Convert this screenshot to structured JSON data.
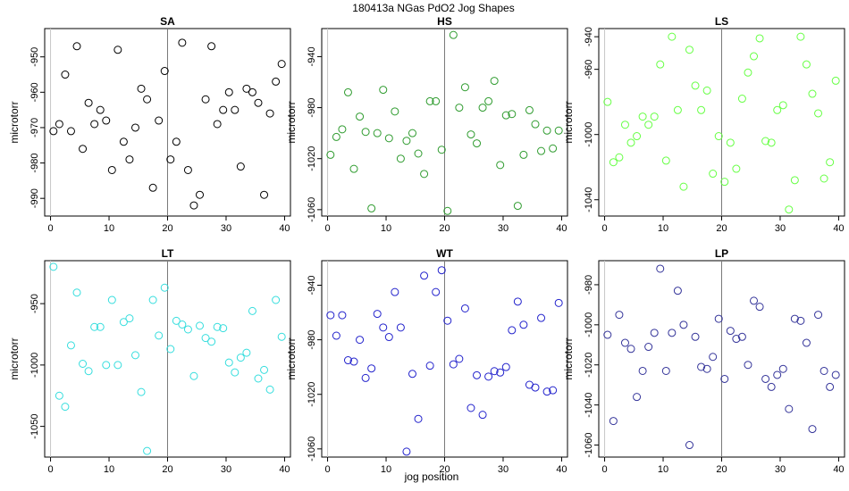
{
  "figure": {
    "title": "180413a   NGas PdO2 Jog Shapes",
    "xlabel": "jog position",
    "ylabel": "microtorr"
  },
  "chart_data": [
    {
      "type": "scatter",
      "title": "SA",
      "color": "#000000",
      "xlim": [
        -1,
        41
      ],
      "ylim": [
        -995,
        -942
      ],
      "xticks": [
        0,
        10,
        20,
        30,
        40
      ],
      "yticks": [
        -990,
        -980,
        -970,
        -960,
        -950
      ],
      "vline": 20,
      "x": [
        0.5,
        1.5,
        2.5,
        3.5,
        4.5,
        5.5,
        6.5,
        7.5,
        8.5,
        9.5,
        10.5,
        11.5,
        12.5,
        13.5,
        14.5,
        15.5,
        16.5,
        17.5,
        18.5,
        19.5,
        20.5,
        21.5,
        22.5,
        23.5,
        24.5,
        25.5,
        26.5,
        27.5,
        28.5,
        29.5,
        30.5,
        31.5,
        32.5,
        33.5,
        34.5,
        35.5,
        36.5,
        37.5,
        38.5,
        39.5
      ],
      "y": [
        -971,
        -969,
        -955,
        -971,
        -947,
        -976,
        -963,
        -969,
        -965,
        -968,
        -982,
        -948,
        -974,
        -979,
        -970,
        -959,
        -962,
        -987,
        -968,
        -954,
        -979,
        -974,
        -946,
        -982,
        -992,
        -989,
        -962,
        -947,
        -969,
        -965,
        -960,
        -965,
        -981,
        -959,
        -960,
        -963,
        -989,
        -966,
        -957,
        -952
      ]
    },
    {
      "type": "scatter",
      "title": "HS",
      "color": "#2e9b2e",
      "xlim": [
        -1,
        41
      ],
      "ylim": [
        -1065,
        -918
      ],
      "xticks": [
        0,
        10,
        20,
        30,
        40
      ],
      "yticks": [
        -1060,
        -1020,
        -980,
        -940
      ],
      "vline": 20,
      "x": [
        0.5,
        1.5,
        2.5,
        3.5,
        4.5,
        5.5,
        6.5,
        7.5,
        8.5,
        9.5,
        10.5,
        11.5,
        12.5,
        13.5,
        14.5,
        15.5,
        16.5,
        17.5,
        18.5,
        19.5,
        20.5,
        21.5,
        22.5,
        23.5,
        24.5,
        25.5,
        26.5,
        27.5,
        28.5,
        29.5,
        30.5,
        31.5,
        32.5,
        33.5,
        34.5,
        35.5,
        36.5,
        37.5,
        38.5,
        39.5
      ],
      "y": [
        -1017,
        -1003,
        -997,
        -968,
        -1028,
        -987,
        -999,
        -1059,
        -1000,
        -966,
        -1004,
        -983,
        -1020,
        -1006,
        -1000,
        -1016,
        -1032,
        -975,
        -975,
        -1013,
        -1061,
        -923,
        -980,
        -964,
        -1001,
        -1008,
        -980,
        -975,
        -959,
        -1025,
        -986,
        -985,
        -1057,
        -1017,
        -982,
        -993,
        -1014,
        -998,
        -1012,
        -998
      ]
    },
    {
      "type": "scatter",
      "title": "LS",
      "color": "#66ff44",
      "xlim": [
        -1,
        41
      ],
      "ylim": [
        -1050,
        -935
      ],
      "xticks": [
        0,
        10,
        20,
        30,
        40
      ],
      "yticks": [
        -1040,
        -1000,
        -960,
        -940
      ],
      "vline": 20,
      "x": [
        0.5,
        1.5,
        2.5,
        3.5,
        4.5,
        5.5,
        6.5,
        7.5,
        8.5,
        9.5,
        10.5,
        11.5,
        12.5,
        13.5,
        14.5,
        15.5,
        16.5,
        17.5,
        18.5,
        19.5,
        20.5,
        21.5,
        22.5,
        23.5,
        24.5,
        25.5,
        26.5,
        27.5,
        28.5,
        29.5,
        30.5,
        31.5,
        32.5,
        33.5,
        34.5,
        35.5,
        36.5,
        37.5,
        38.5,
        39.5
      ],
      "y": [
        -980,
        -1017,
        -1014,
        -994,
        -1005,
        -1001,
        -989,
        -994,
        -989,
        -957,
        -1016,
        -940,
        -985,
        -1032,
        -948,
        -970,
        -985,
        -973,
        -1024,
        -1001,
        -1029,
        -1005,
        -1021,
        -978,
        -962,
        -952,
        -941,
        -1004,
        -1005,
        -985,
        -982,
        -1046,
        -1028,
        -940,
        -957,
        -975,
        -987,
        -1027,
        -1017,
        -967
      ]
    },
    {
      "type": "scatter",
      "title": "LT",
      "color": "#33dddd",
      "xlim": [
        -1,
        41
      ],
      "ylim": [
        -1075,
        -915
      ],
      "xticks": [
        0,
        10,
        20,
        30,
        40
      ],
      "yticks": [
        -1050,
        -1000,
        -950
      ],
      "vline": 20,
      "x": [
        0.5,
        1.5,
        2.5,
        3.5,
        4.5,
        5.5,
        6.5,
        7.5,
        8.5,
        9.5,
        10.5,
        11.5,
        12.5,
        13.5,
        14.5,
        15.5,
        16.5,
        17.5,
        18.5,
        19.5,
        20.5,
        21.5,
        22.5,
        23.5,
        24.5,
        25.5,
        26.5,
        27.5,
        28.5,
        29.5,
        30.5,
        31.5,
        32.5,
        33.5,
        34.5,
        35.5,
        36.5,
        37.5,
        38.5,
        39.5
      ],
      "y": [
        -920,
        -1025,
        -1034,
        -984,
        -941,
        -999,
        -1005,
        -969,
        -969,
        -1000,
        -947,
        -1000,
        -965,
        -962,
        -992,
        -1022,
        -1070,
        -947,
        -976,
        -937,
        -987,
        -964,
        -967,
        -971,
        -1009,
        -968,
        -978,
        -981,
        -969,
        -970,
        -998,
        -1006,
        -994,
        -990,
        -956,
        -1011,
        -1004,
        -1020,
        -947,
        -977
      ]
    },
    {
      "type": "scatter",
      "title": "WT",
      "color": "#2222cc",
      "xlim": [
        -1,
        41
      ],
      "ylim": [
        -1066,
        -922
      ],
      "xticks": [
        0,
        10,
        20,
        30,
        40
      ],
      "yticks": [
        -1060,
        -1020,
        -980,
        -940
      ],
      "vline": 20,
      "x": [
        0.5,
        1.5,
        2.5,
        3.5,
        4.5,
        5.5,
        6.5,
        7.5,
        8.5,
        9.5,
        10.5,
        11.5,
        12.5,
        13.5,
        14.5,
        15.5,
        16.5,
        17.5,
        18.5,
        19.5,
        20.5,
        21.5,
        22.5,
        23.5,
        24.5,
        25.5,
        26.5,
        27.5,
        28.5,
        29.5,
        30.5,
        31.5,
        32.5,
        33.5,
        34.5,
        35.5,
        36.5,
        37.5,
        38.5,
        39.5
      ],
      "y": [
        -962,
        -977,
        -962,
        -995,
        -996,
        -980,
        -1008,
        -1001,
        -961,
        -971,
        -978,
        -945,
        -971,
        -1062,
        -1005,
        -1038,
        -933,
        -999,
        -945,
        -929,
        -966,
        -998,
        -994,
        -957,
        -1030,
        -1006,
        -1035,
        -1007,
        -1003,
        -1004,
        -1000,
        -973,
        -952,
        -969,
        -1013,
        -1015,
        -964,
        -1018,
        -1017,
        -953
      ]
    },
    {
      "type": "scatter",
      "title": "LP",
      "color": "#333399",
      "xlim": [
        -1,
        41
      ],
      "ylim": [
        -1066,
        -968
      ],
      "xticks": [
        0,
        10,
        20,
        30,
        40
      ],
      "yticks": [
        -1060,
        -1040,
        -1020,
        -1000,
        -980
      ],
      "vline": 20,
      "x": [
        0.5,
        1.5,
        2.5,
        3.5,
        4.5,
        5.5,
        6.5,
        7.5,
        8.5,
        9.5,
        10.5,
        11.5,
        12.5,
        13.5,
        14.5,
        15.5,
        16.5,
        17.5,
        18.5,
        19.5,
        20.5,
        21.5,
        22.5,
        23.5,
        24.5,
        25.5,
        26.5,
        27.5,
        28.5,
        29.5,
        30.5,
        31.5,
        32.5,
        33.5,
        34.5,
        35.5,
        36.5,
        37.5,
        38.5,
        39.5
      ],
      "y": [
        -1005,
        -1048,
        -995,
        -1009,
        -1012,
        -1036,
        -1023,
        -1011,
        -1004,
        -972,
        -1023,
        -1004,
        -983,
        -1000,
        -1060,
        -1006,
        -1021,
        -1022,
        -1016,
        -997,
        -1027,
        -1003,
        -1007,
        -1006,
        -1020,
        -988,
        -991,
        -1027,
        -1031,
        -1025,
        -1022,
        -1042,
        -997,
        -998,
        -1009,
        -1052,
        -995,
        -1023,
        -1031,
        -1025
      ]
    }
  ]
}
